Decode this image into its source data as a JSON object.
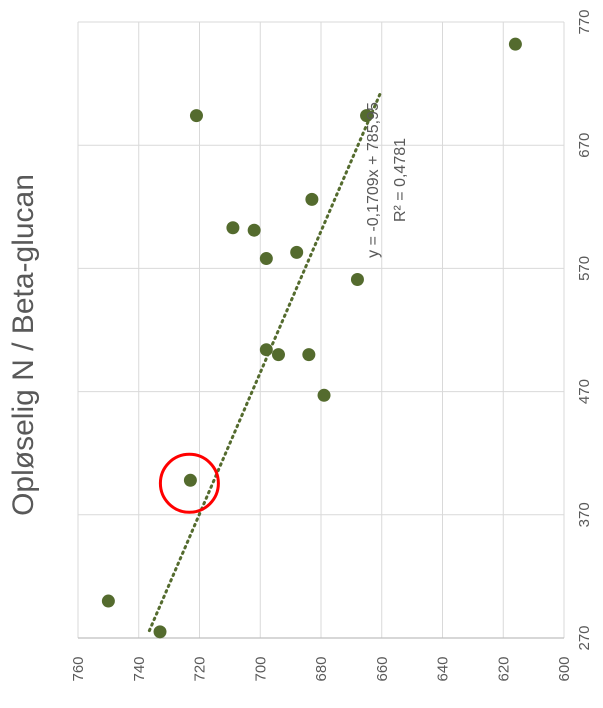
{
  "chart_data": {
    "type": "scatter",
    "title": "Opløselig N / Beta-glucan",
    "x_axis": {
      "min": 270,
      "max": 770,
      "ticks": [
        270,
        370,
        470,
        570,
        670,
        770
      ]
    },
    "y_axis": {
      "min": 600,
      "max": 760,
      "ticks": [
        760,
        740,
        720,
        700,
        680,
        660,
        640,
        620,
        600
      ]
    },
    "orientation": "rotated-90-clockwise",
    "grid": true,
    "series": [
      {
        "name": "",
        "points": [
          {
            "x": 300,
            "y": 750
          },
          {
            "x": 275,
            "y": 733
          },
          {
            "x": 398,
            "y": 723
          },
          {
            "x": 467,
            "y": 679
          },
          {
            "x": 500,
            "y": 684
          },
          {
            "x": 504,
            "y": 698
          },
          {
            "x": 500,
            "y": 694
          },
          {
            "x": 561,
            "y": 668
          },
          {
            "x": 578,
            "y": 698
          },
          {
            "x": 583,
            "y": 688
          },
          {
            "x": 601,
            "y": 702
          },
          {
            "x": 603,
            "y": 709
          },
          {
            "x": 626,
            "y": 683
          },
          {
            "x": 694,
            "y": 721
          },
          {
            "x": 694,
            "y": 665
          },
          {
            "x": 752,
            "y": 616
          }
        ],
        "color": "#546B2E"
      }
    ],
    "trendline": {
      "type": "linear",
      "color": "#546B2E",
      "x_range": [
        276,
        712
      ],
      "y_range": [
        736.5,
        660.5
      ],
      "equation": "y = -0,1709x + 785,95",
      "r_squared": "R² = 0,4781"
    },
    "highlight": {
      "shape": "circle",
      "color": "#FF0000",
      "x": 398,
      "y": 723
    }
  }
}
